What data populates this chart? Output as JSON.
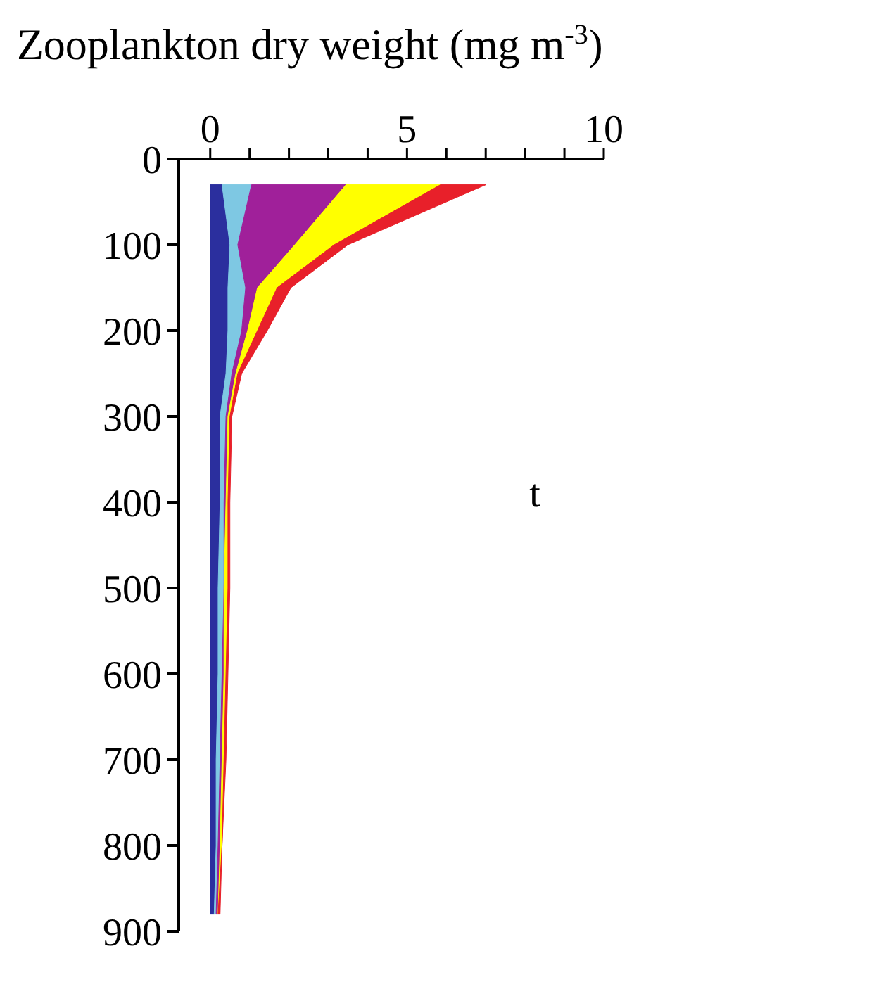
{
  "chart_data": {
    "type": "area",
    "stacked": true,
    "orientation": "horizontal",
    "xlabel": "Zooplankton dry weight (mg m$^{-3}$)",
    "x": [
      30,
      100,
      150,
      200,
      250,
      300,
      400,
      500,
      600,
      700,
      800,
      880
    ],
    "series": [
      {
        "color": "#2b2f9e",
        "values": [
          0.3,
          0.5,
          0.45,
          0.45,
          0.4,
          0.25,
          0.25,
          0.2,
          0.2,
          0.15,
          0.15,
          0.1
        ]
      },
      {
        "color": "#7ec8e3",
        "values": [
          0.75,
          0.2,
          0.45,
          0.35,
          0.15,
          0.15,
          0.1,
          0.15,
          0.1,
          0.1,
          0.05,
          0.05
        ]
      },
      {
        "color": "#a0209a",
        "values": [
          2.4,
          1.45,
          0.3,
          0.15,
          0.1,
          0.05,
          0.05,
          0,
          0.05,
          0.05,
          0.05,
          0.05
        ]
      },
      {
        "color": "#ffff00",
        "values": [
          2.4,
          1,
          0.5,
          0.25,
          0.05,
          0.05,
          0.05,
          0.1,
          0.05,
          0.05,
          0.05,
          0
        ]
      },
      {
        "color": "#e8202a",
        "values": [
          1.15,
          0.35,
          0.35,
          0.25,
          0.1,
          0.05,
          0.05,
          0.05,
          0.05,
          0.05,
          0,
          0.05
        ]
      }
    ],
    "xlim": [
      -0.8,
      10
    ],
    "xticks": [
      0,
      {
        "value": 1,
        "label": null
      },
      {
        "value": 2,
        "label": null
      },
      {
        "value": 3,
        "label": null
      },
      {
        "value": 4,
        "label": null
      },
      5,
      {
        "value": 6,
        "label": null
      },
      {
        "value": 7,
        "label": null
      },
      {
        "value": 8,
        "label": null
      },
      {
        "value": 9,
        "label": null
      },
      10
    ],
    "ylim": [
      900,
      0
    ],
    "yticks": [
      0,
      100,
      200,
      300,
      400,
      500,
      600,
      700,
      800,
      900
    ],
    "annotations": [
      "t"
    ]
  }
}
